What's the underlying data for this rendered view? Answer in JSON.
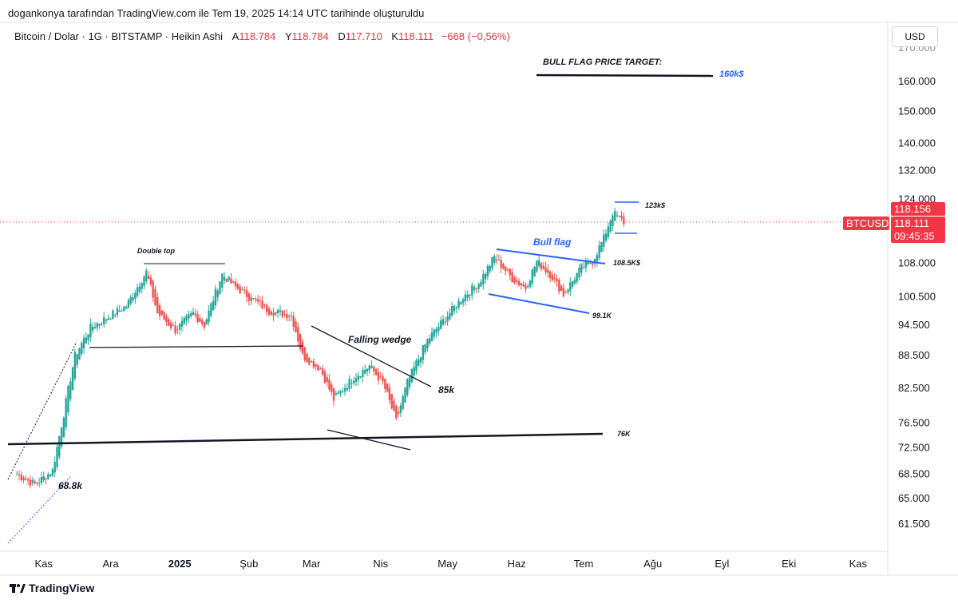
{
  "header": {
    "attribution": "dogankonya tarafından TradingView.com ile Tem 19, 2025 14:14 UTC tarihinde oluşturuldu"
  },
  "symbol": {
    "name": "Bitcoin / Dolar · 1G · BITSTAMP · Heikin Ashi",
    "o_label": "A",
    "o_value": "118.784",
    "h_label": "Y",
    "h_value": "118.784",
    "l_label": "D",
    "l_value": "117.710",
    "c_label": "K",
    "c_value": "118.111",
    "change": "−668 (−0,56%)"
  },
  "currency_button": "USD",
  "footer": {
    "brand": "TradingView"
  },
  "colors": {
    "up": "#26a69a",
    "down": "#ef5350",
    "annotation_blue": "#2962ff",
    "price_tag": "#f23645"
  },
  "chart_data": {
    "type": "candlestick",
    "title": "Bitcoin / Dolar · 1G · BITSTAMP · Heikin Ashi",
    "scale": "log",
    "ylim": [
      58000,
      172000
    ],
    "y_ticks": [
      61500,
      65000,
      68500,
      72500,
      76500,
      82500,
      88500,
      94500,
      100500,
      108000,
      124000,
      132000,
      140000,
      150000,
      160000
    ],
    "y_tick_labels": [
      "61.500",
      "65.000",
      "68.500",
      "72.500",
      "76.500",
      "82.500",
      "88.500",
      "94.500",
      "100.500",
      "108.000",
      "124.000",
      "132.000",
      "140.000",
      "150.000",
      "160.000"
    ],
    "x_ticks": [
      {
        "date": "2024-11-01",
        "label": "Kas",
        "bold": false
      },
      {
        "date": "2024-12-01",
        "label": "Ara",
        "bold": false
      },
      {
        "date": "2025-01-01",
        "label": "2025",
        "bold": true
      },
      {
        "date": "2025-02-01",
        "label": "Şub",
        "bold": false
      },
      {
        "date": "2025-03-01",
        "label": "Mar",
        "bold": false
      },
      {
        "date": "2025-04-01",
        "label": "Nis",
        "bold": false
      },
      {
        "date": "2025-05-01",
        "label": "May",
        "bold": false
      },
      {
        "date": "2025-06-01",
        "label": "Haz",
        "bold": false
      },
      {
        "date": "2025-07-01",
        "label": "Tem",
        "bold": false
      },
      {
        "date": "2025-08-01",
        "label": "Ağu",
        "bold": false
      },
      {
        "date": "2025-09-01",
        "label": "Eyl",
        "bold": false
      },
      {
        "date": "2025-10-01",
        "label": "Eki",
        "bold": false
      },
      {
        "date": "2025-11-01",
        "label": "Kas",
        "bold": false
      }
    ],
    "price_path": [
      [
        "2024-10-20",
        68500
      ],
      [
        "2024-10-28",
        67000
      ],
      [
        "2024-11-05",
        69000
      ],
      [
        "2024-11-10",
        78000
      ],
      [
        "2024-11-15",
        88500
      ],
      [
        "2024-11-22",
        94000
      ],
      [
        "2024-12-01",
        96500
      ],
      [
        "2024-12-08",
        98500
      ],
      [
        "2024-12-17",
        106000
      ],
      [
        "2024-12-22",
        97000
      ],
      [
        "2024-12-30",
        93500
      ],
      [
        "2025-01-07",
        97000
      ],
      [
        "2025-01-12",
        94500
      ],
      [
        "2025-01-20",
        105500
      ],
      [
        "2025-01-25",
        103000
      ],
      [
        "2025-02-01",
        100500
      ],
      [
        "2025-02-10",
        97500
      ],
      [
        "2025-02-20",
        96500
      ],
      [
        "2025-02-25",
        88500
      ],
      [
        "2025-03-05",
        86000
      ],
      [
        "2025-03-11",
        80500
      ],
      [
        "2025-03-20",
        84500
      ],
      [
        "2025-03-27",
        86500
      ],
      [
        "2025-04-02",
        83500
      ],
      [
        "2025-04-08",
        76800
      ],
      [
        "2025-04-13",
        83500
      ],
      [
        "2025-04-22",
        91500
      ],
      [
        "2025-05-01",
        96500
      ],
      [
        "2025-05-08",
        100500
      ],
      [
        "2025-05-15",
        103500
      ],
      [
        "2025-05-22",
        109500
      ],
      [
        "2025-05-30",
        104500
      ],
      [
        "2025-06-05",
        102500
      ],
      [
        "2025-06-10",
        108500
      ],
      [
        "2025-06-16",
        105500
      ],
      [
        "2025-06-22",
        101000
      ],
      [
        "2025-06-30",
        107000
      ],
      [
        "2025-07-05",
        108500
      ],
      [
        "2025-07-10",
        114000
      ],
      [
        "2025-07-14",
        120500
      ],
      [
        "2025-07-19",
        118111
      ]
    ],
    "levels": [
      {
        "label": "Double top",
        "price": 108500
      },
      {
        "label": "Falling wedge"
      },
      {
        "label": "85k"
      },
      {
        "label": "68.8k"
      },
      {
        "label": "76K",
        "price": 76500
      },
      {
        "label": "Bull flag"
      },
      {
        "label": "108.5K$",
        "price": 108500
      },
      {
        "label": "99.1K",
        "price": 99100
      },
      {
        "label": "123k$",
        "price": 123000
      },
      {
        "label": "BULL FLAG PRICE TARGET:"
      },
      {
        "label": "160k$",
        "price": 160000
      }
    ],
    "price_tags": [
      {
        "label": "118.156"
      },
      {
        "label": "BTCUSD"
      },
      {
        "label": "118.111"
      },
      {
        "label": "09:45:35"
      }
    ],
    "partial_top_tick_label": "170.000"
  }
}
